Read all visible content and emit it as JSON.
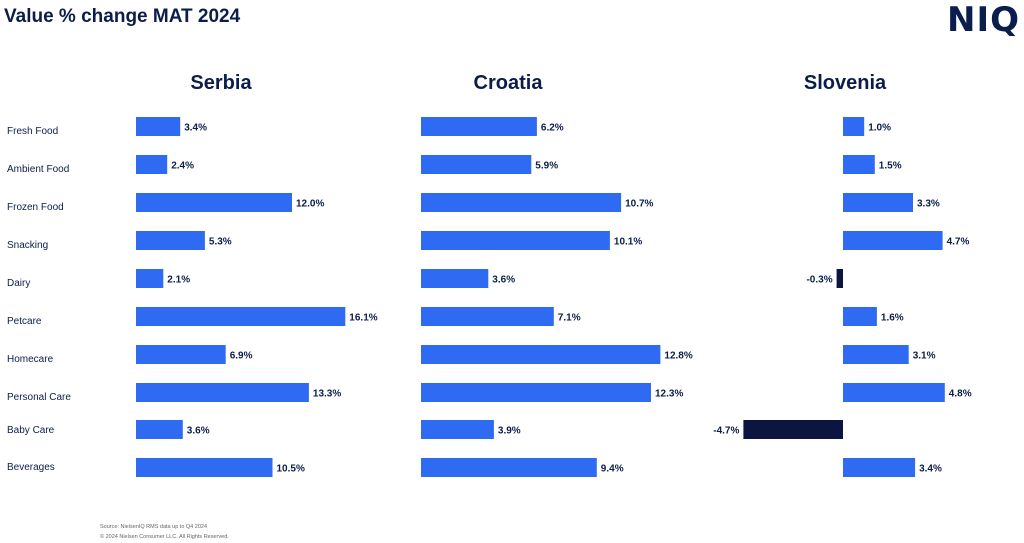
{
  "header": {
    "title": "Value % change MAT 2024",
    "logo_text": "NIQ"
  },
  "colors": {
    "positive": "#2f6bf2",
    "negative": "#0b1540",
    "text": "#0b1d4a"
  },
  "chart_data": {
    "type": "bar",
    "orientation": "horizontal",
    "categories": [
      "Fresh Food",
      "Ambient Food",
      "Frozen Food",
      "Snacking",
      "Dairy",
      "Petcare",
      "Homecare",
      "Personal Care",
      "Baby Care",
      "Beverages"
    ],
    "panels": [
      {
        "name": "Serbia",
        "values": [
          3.4,
          2.4,
          12.0,
          5.3,
          2.1,
          16.1,
          6.9,
          13.3,
          3.6,
          10.5
        ],
        "labels": [
          "3.4%",
          "2.4%",
          "12.0%",
          "5.3%",
          "2.1%",
          "16.1%",
          "6.9%",
          "13.3%",
          "3.6%",
          "10.5%"
        ]
      },
      {
        "name": "Croatia",
        "values": [
          6.2,
          5.9,
          10.7,
          10.1,
          3.6,
          7.1,
          12.8,
          12.3,
          3.9,
          9.4
        ],
        "labels": [
          "6.2%",
          "5.9%",
          "10.7%",
          "10.1%",
          "3.6%",
          "7.1%",
          "12.8%",
          "12.3%",
          "3.9%",
          "9.4%"
        ]
      },
      {
        "name": "Slovenia",
        "values": [
          1.0,
          1.5,
          3.3,
          4.7,
          -0.3,
          1.6,
          3.1,
          4.8,
          -4.7,
          3.4
        ],
        "labels": [
          "1.0%",
          "1.5%",
          "3.3%",
          "4.7%",
          "-0.3%",
          "1.6%",
          "3.1%",
          "4.8%",
          "-4.7%",
          "3.4%"
        ]
      }
    ]
  },
  "footer": {
    "source": "Source: NielsenIQ RMS data up to Q4 2024",
    "copyright": "© 2024 Nielsen Consumer LLC. All Rights Reserved."
  }
}
